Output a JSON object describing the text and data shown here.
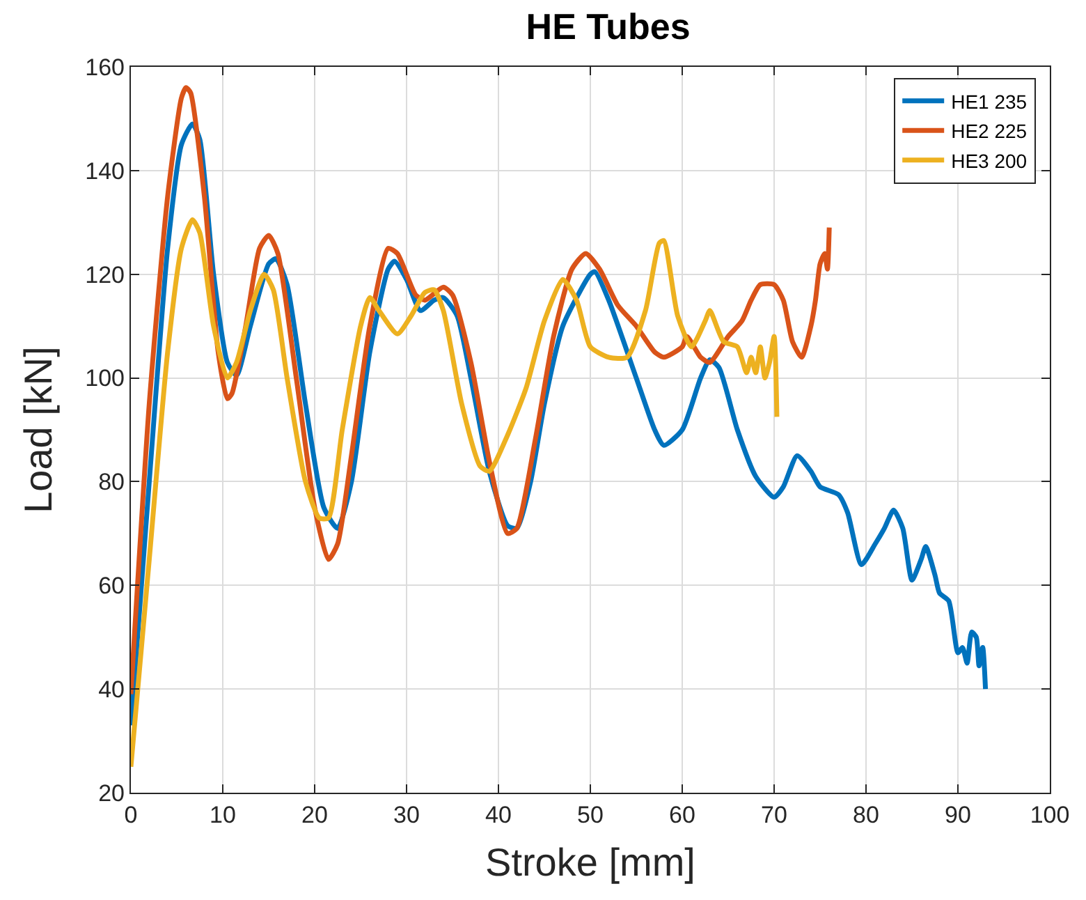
{
  "chart_data": {
    "type": "line",
    "title": "HE Tubes",
    "xlabel": "Stroke [mm]",
    "ylabel": "Load [kN]",
    "xlim": [
      0,
      100
    ],
    "xticks": [
      0,
      10,
      20,
      30,
      40,
      50,
      60,
      70,
      80,
      90,
      100
    ],
    "ylim": [
      20,
      160
    ],
    "yticks": [
      20,
      40,
      60,
      80,
      100,
      120,
      140,
      160
    ],
    "grid": true,
    "legend": "top right",
    "marker": "none",
    "line_style": "solid",
    "series": [
      {
        "name": "HE1 235",
        "color": "#0072bd",
        "x": [
          0,
          2,
          4,
          5.5,
          6.7,
          7.5,
          9,
          10.5,
          11.5,
          13,
          15,
          15.8,
          17,
          19,
          21,
          22.5,
          24,
          26,
          28,
          28.7,
          30,
          31.5,
          33,
          34,
          35.5,
          37,
          39,
          41,
          42,
          43.5,
          45,
          47,
          50,
          50.5,
          52,
          55,
          57,
          58,
          60,
          62,
          63,
          64,
          66,
          68,
          70,
          71,
          72.5,
          74,
          75,
          77,
          78,
          79.5,
          81,
          82,
          83,
          84,
          85,
          86,
          86.5,
          87.5,
          88,
          89,
          90,
          90.5,
          91,
          91.5,
          92,
          92.3,
          92.7,
          93
        ],
        "values": [
          33,
          80,
          125,
          145,
          149,
          146,
          120,
          103,
          100.5,
          110,
          122,
          123,
          118,
          95,
          75,
          71,
          80,
          105,
          121,
          122.5,
          119,
          113,
          115,
          115.5,
          112,
          100,
          82,
          71.5,
          71,
          80,
          95,
          110,
          120,
          120.5,
          115,
          100,
          90,
          87,
          90,
          100,
          103.5,
          102,
          90,
          81,
          77,
          79,
          85,
          82,
          79,
          77.5,
          74,
          64,
          68,
          71,
          74.5,
          71,
          61,
          65,
          67.5,
          62,
          58.5,
          57,
          47,
          48,
          45,
          51,
          50,
          44.5,
          48,
          40
        ]
      },
      {
        "name": "HE2 225",
        "color": "#d95319",
        "x": [
          0,
          2,
          4,
          5.5,
          6,
          6.5,
          8,
          9.5,
          10.5,
          11,
          12.5,
          14,
          15,
          16,
          18,
          20,
          21.5,
          22.5,
          24,
          26,
          28,
          29,
          31,
          32,
          34,
          35,
          37,
          39,
          41,
          42,
          44,
          46,
          48,
          49.5,
          51,
          53,
          55,
          57,
          58,
          60,
          60.5,
          62,
          63,
          65,
          66.5,
          67.5,
          68.5,
          70,
          71,
          72,
          73,
          74,
          74.5,
          75,
          75.5,
          75.8,
          76
        ],
        "values": [
          39,
          95,
          135,
          154,
          156,
          155,
          135,
          105,
          96,
          97,
          110,
          125,
          127.5,
          124,
          100,
          75,
          65,
          68,
          85,
          110,
          125,
          124,
          116,
          115,
          117.5,
          116,
          103,
          84,
          70,
          71,
          88,
          108,
          121,
          124,
          121,
          114,
          110,
          105,
          104,
          106,
          108,
          104,
          103,
          108,
          111,
          115,
          118,
          118,
          115,
          107,
          104,
          110,
          115,
          122,
          124,
          121,
          129
        ]
      },
      {
        "name": "HE3 200",
        "color": "#edb120",
        "x": [
          0,
          2,
          4,
          5.5,
          6.7,
          7.5,
          9,
          10.5,
          11.5,
          13,
          14.5,
          15.5,
          17,
          19,
          20.5,
          21.5,
          23,
          25,
          26,
          27,
          29,
          30.5,
          32,
          33,
          34,
          36,
          38,
          39,
          41,
          43,
          45,
          47,
          48.5,
          50,
          52,
          54,
          56,
          57.5,
          58,
          59.5,
          61,
          62.5,
          63,
          64.5,
          66,
          67,
          67.5,
          68,
          68.5,
          69,
          69.5,
          70,
          70.3
        ],
        "values": [
          25,
          65,
          105,
          125,
          130.5,
          128,
          110,
          100,
          103,
          113,
          120,
          117,
          100,
          80,
          73,
          73,
          90,
          110,
          115.5,
          113,
          108.5,
          112,
          116.5,
          117,
          113,
          95,
          83,
          82,
          89,
          98,
          111,
          119,
          115,
          106,
          104,
          104,
          113,
          126,
          126.5,
          112,
          106,
          111,
          113,
          107,
          106,
          101,
          104,
          101,
          106,
          100,
          103,
          108,
          92.5
        ]
      }
    ]
  }
}
